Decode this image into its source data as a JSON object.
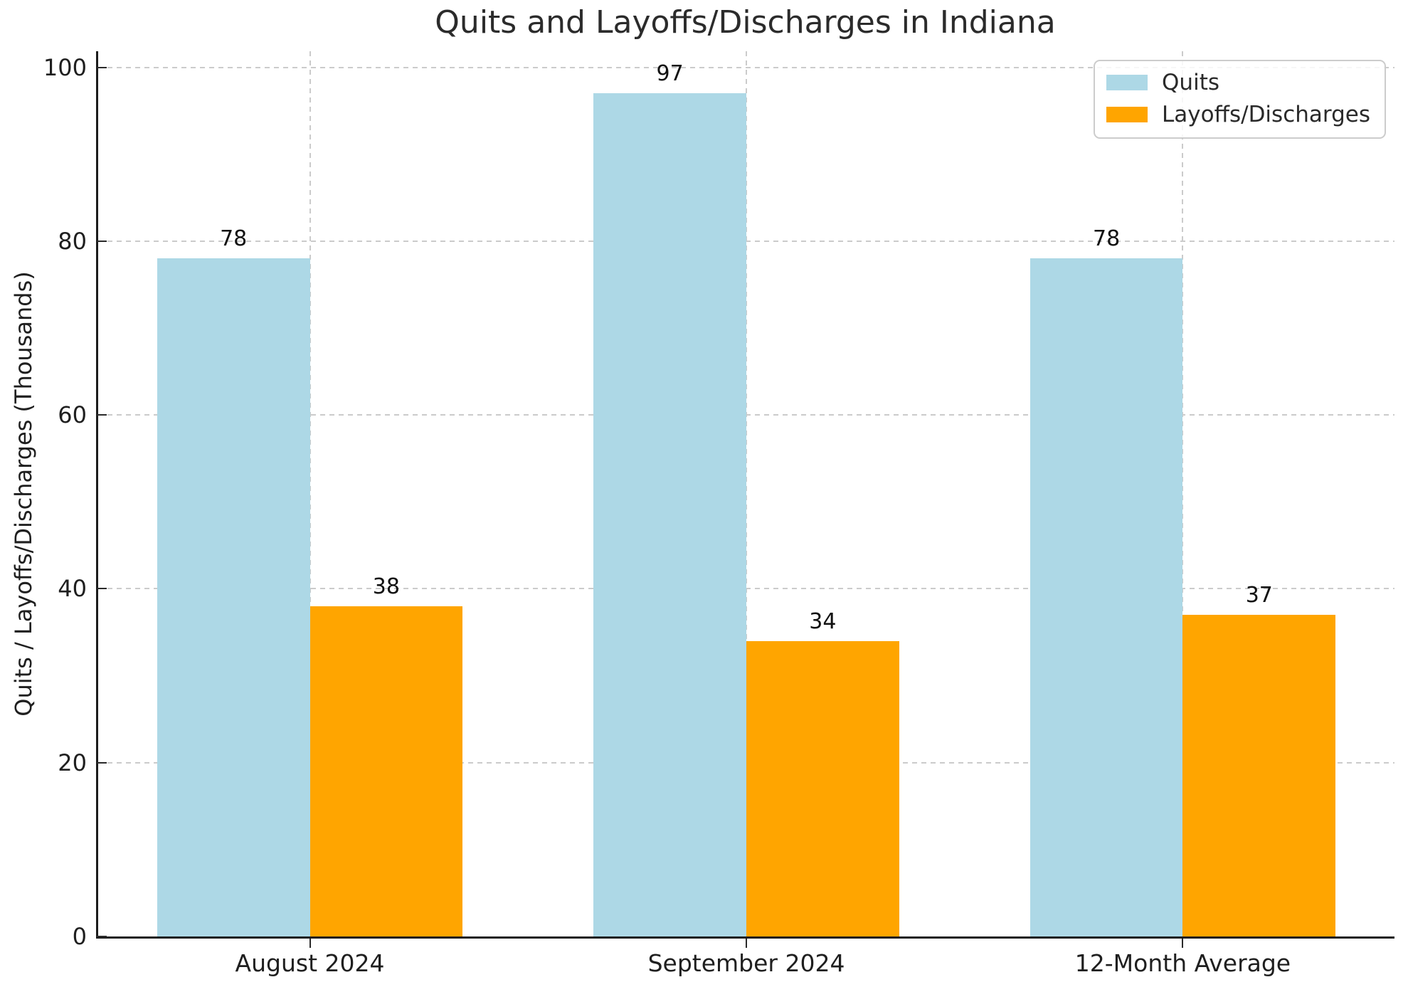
{
  "chart_data": {
    "type": "bar",
    "title": "Quits and Layoffs/Discharges in Indiana",
    "ylabel": "Quits / Layoffs/Discharges (Thousands)",
    "xlabel": "",
    "categories": [
      "August 2024",
      "September 2024",
      "12-Month Average"
    ],
    "series": [
      {
        "name": "Quits",
        "color": "#ADD8E6",
        "values": [
          78,
          97,
          78
        ]
      },
      {
        "name": "Layoffs/Discharges",
        "color": "#FFA500",
        "values": [
          38,
          34,
          37
        ]
      }
    ],
    "yticks": [
      0,
      20,
      40,
      60,
      80,
      100
    ],
    "ylim": [
      0,
      101.85
    ],
    "grid": true,
    "grid_style": "dashed",
    "grid_color": "#cbcbcb",
    "legend_position": "upper right",
    "bar_value_labels_shown": true
  }
}
